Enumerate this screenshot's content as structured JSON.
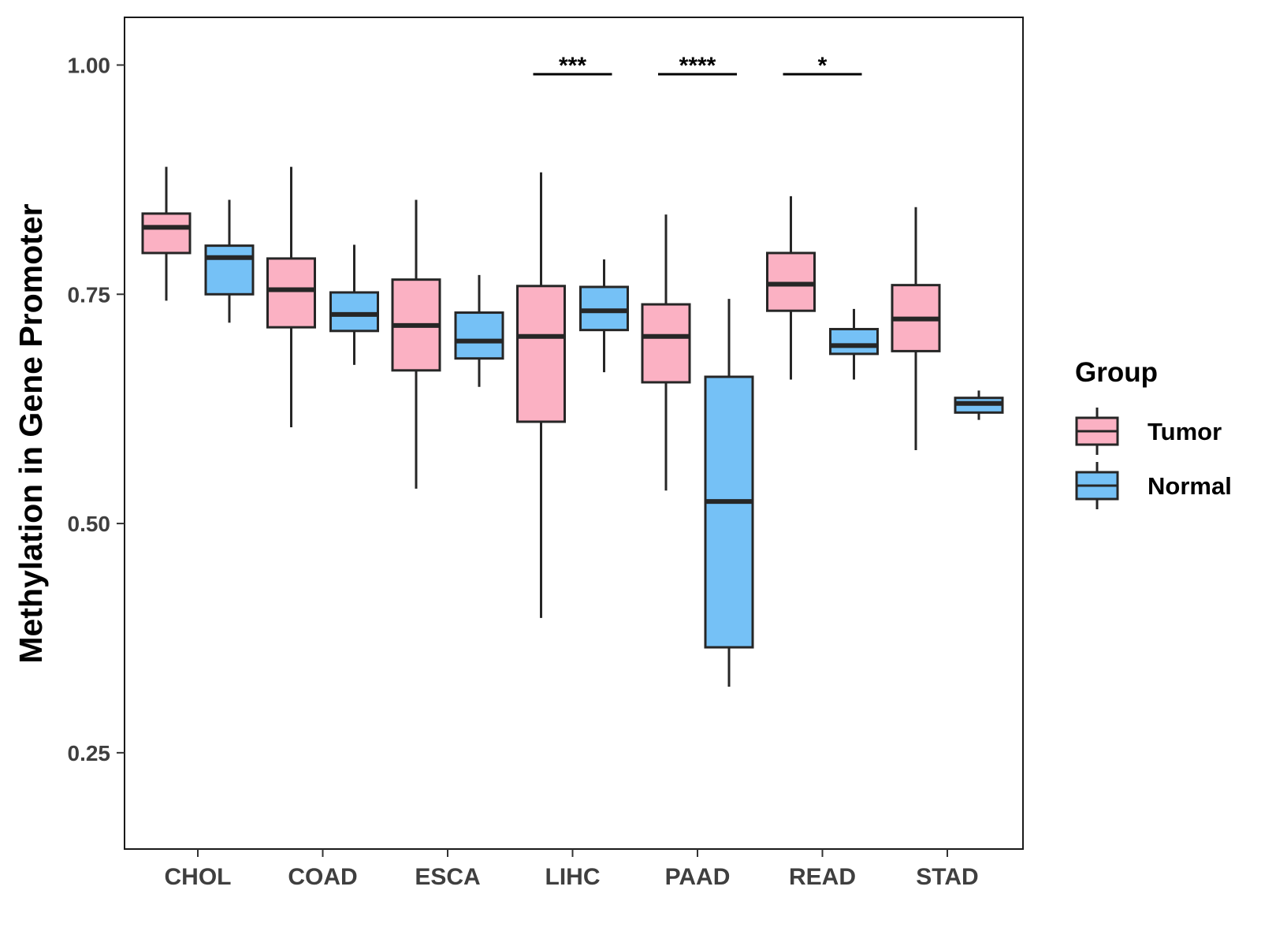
{
  "chart_data": {
    "type": "boxplot",
    "ylabel": "Methylation in Gene Promoter",
    "xlabel": "",
    "ylim": [
      0.145,
      1.052
    ],
    "yticks": [
      0.25,
      0.5,
      0.75,
      1.0
    ],
    "ytick_labels": [
      "0.25",
      "0.50",
      "0.75",
      "1.00"
    ],
    "categories": [
      "CHOL",
      "COAD",
      "ESCA",
      "LIHC",
      "PAAD",
      "READ",
      "STAD"
    ],
    "legend": {
      "title": "Group",
      "position": "right",
      "entries": [
        {
          "name": "Tumor",
          "color": "#fbb1c3"
        },
        {
          "name": "Normal",
          "color": "#75c1f6"
        }
      ]
    },
    "series": [
      {
        "name": "Tumor",
        "color": "#fbb1c3",
        "boxes": [
          {
            "category": "CHOL",
            "min": 0.743,
            "q1": 0.795,
            "median": 0.823,
            "q3": 0.838,
            "max": 0.889
          },
          {
            "category": "COAD",
            "min": 0.605,
            "q1": 0.714,
            "median": 0.755,
            "q3": 0.789,
            "max": 0.889
          },
          {
            "category": "ESCA",
            "min": 0.538,
            "q1": 0.667,
            "median": 0.716,
            "q3": 0.766,
            "max": 0.853
          },
          {
            "category": "LIHC",
            "min": 0.397,
            "q1": 0.611,
            "median": 0.704,
            "q3": 0.759,
            "max": 0.883
          },
          {
            "category": "PAAD",
            "min": 0.536,
            "q1": 0.654,
            "median": 0.704,
            "q3": 0.739,
            "max": 0.837
          },
          {
            "category": "READ",
            "min": 0.657,
            "q1": 0.732,
            "median": 0.761,
            "q3": 0.795,
            "max": 0.857
          },
          {
            "category": "STAD",
            "min": 0.58,
            "q1": 0.688,
            "median": 0.723,
            "q3": 0.76,
            "max": 0.845
          }
        ]
      },
      {
        "name": "Normal",
        "color": "#75c1f6",
        "boxes": [
          {
            "category": "CHOL",
            "min": 0.719,
            "q1": 0.75,
            "median": 0.79,
            "q3": 0.803,
            "max": 0.853
          },
          {
            "category": "COAD",
            "min": 0.673,
            "q1": 0.71,
            "median": 0.728,
            "q3": 0.752,
            "max": 0.804
          },
          {
            "category": "ESCA",
            "min": 0.649,
            "q1": 0.68,
            "median": 0.699,
            "q3": 0.73,
            "max": 0.771
          },
          {
            "category": "LIHC",
            "min": 0.665,
            "q1": 0.711,
            "median": 0.732,
            "q3": 0.758,
            "max": 0.788
          },
          {
            "category": "PAAD",
            "min": 0.322,
            "q1": 0.365,
            "median": 0.524,
            "q3": 0.66,
            "max": 0.745
          },
          {
            "category": "READ",
            "min": 0.657,
            "q1": 0.685,
            "median": 0.694,
            "q3": 0.712,
            "max": 0.734
          },
          {
            "category": "STAD",
            "min": 0.613,
            "q1": 0.621,
            "median": 0.631,
            "q3": 0.637,
            "max": 0.645
          }
        ]
      }
    ],
    "annotations": [
      {
        "category": "LIHC",
        "label": "***",
        "y": 0.99
      },
      {
        "category": "PAAD",
        "label": "****",
        "y": 0.99
      },
      {
        "category": "READ",
        "label": "*",
        "y": 0.99
      }
    ]
  }
}
